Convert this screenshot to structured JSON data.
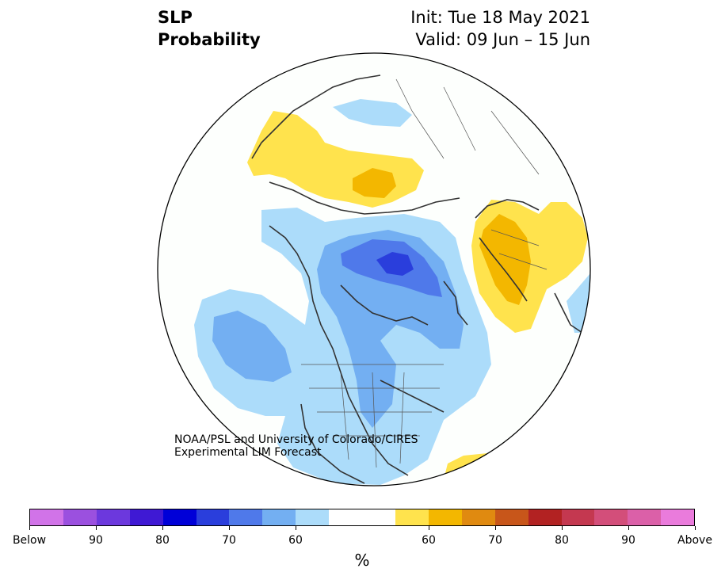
{
  "title": {
    "variable": "SLP",
    "product": "Probability",
    "init": "Init: Tue 18 May 2021",
    "valid": "Valid: 09 Jun – 15 Jun"
  },
  "credit": {
    "line1": "NOAA/PSL and University of Colorado/CIRES",
    "line2": "Experimental LIM Forecast"
  },
  "colorbar": {
    "colors": [
      "#d173e8",
      "#9b50df",
      "#6c38dd",
      "#3f19d4",
      "#0000d8",
      "#2a3edc",
      "#4f79ea",
      "#73aff2",
      "#acdcfa",
      "#ffffff",
      "#ffffff",
      "#ffe34d",
      "#f3b700",
      "#e08a10",
      "#c8561a",
      "#b22222",
      "#c43850",
      "#d34e7a",
      "#db60a8",
      "#ea7bdc"
    ],
    "labels": [
      "Below",
      "90",
      "80",
      "70",
      "60",
      "60",
      "70",
      "80",
      "90",
      "Above"
    ],
    "unit": "%"
  },
  "legend_colors": {
    "blue_light": "#acdcfa",
    "blue_mid": "#73aff2",
    "blue_dark": "#4f79ea",
    "blue_deep": "#2a3edc",
    "yellow_light": "#ffe34d",
    "yellow_dark": "#f3b700",
    "map_background": "#fdfffd",
    "coastline": "#333333"
  }
}
